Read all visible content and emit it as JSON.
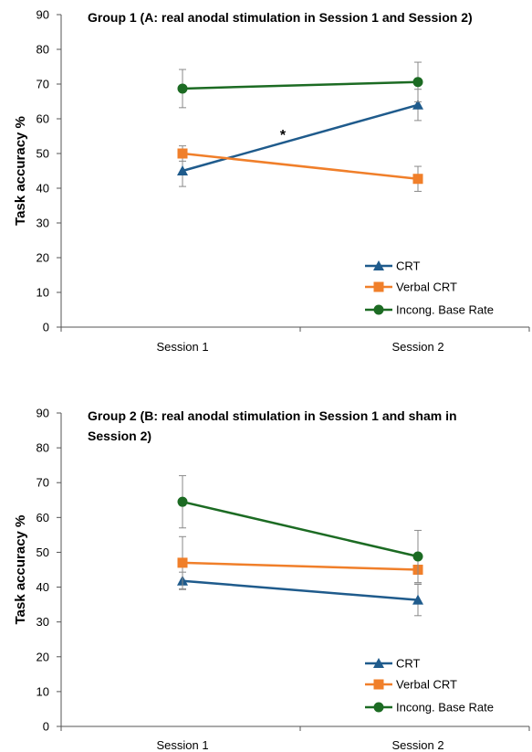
{
  "chart_data": [
    {
      "type": "line",
      "title_lines": [
        "Group 1 (A: real anodal stimulation in Session 1 and Session 2)"
      ],
      "ylabel": "Task accuracy %",
      "xlabel": "",
      "categories": [
        "Session 1",
        "Session 2"
      ],
      "ylim": [
        0,
        90
      ],
      "yticks": [
        "0",
        "10",
        "20",
        "30",
        "40",
        "50",
        "60",
        "70",
        "80",
        "90"
      ],
      "legend_position": "bottom-right",
      "grid": false,
      "annotation": "*",
      "series": [
        {
          "name": "CRT",
          "color": "#1f5b8c",
          "marker": "triangle",
          "values": [
            45,
            64
          ],
          "errors": [
            4.5,
            4.5
          ]
        },
        {
          "name": "Verbal CRT",
          "color": "#f07f2a",
          "marker": "square",
          "values": [
            50,
            42.7
          ],
          "errors": [
            2.2,
            3.6
          ]
        },
        {
          "name": "Incong. Base Rate",
          "color": "#1c6b23",
          "marker": "circle",
          "values": [
            68.7,
            70.6
          ],
          "errors": [
            5.5,
            5.7
          ]
        }
      ]
    },
    {
      "type": "line",
      "title_lines": [
        "Group 2 (B: real anodal stimulation in Session 1 and sham in",
        "Session 2)"
      ],
      "ylabel": "Task accuracy %",
      "xlabel": "",
      "categories": [
        "Session 1",
        "Session 2"
      ],
      "ylim": [
        0,
        90
      ],
      "yticks": [
        "0",
        "10",
        "20",
        "30",
        "40",
        "50",
        "60",
        "70",
        "80",
        "90"
      ],
      "legend_position": "bottom-right",
      "grid": false,
      "annotation": "",
      "series": [
        {
          "name": "CRT",
          "color": "#1f5b8c",
          "marker": "triangle",
          "values": [
            41.8,
            36.3
          ],
          "errors": [
            2.5,
            4.5
          ]
        },
        {
          "name": "Verbal CRT",
          "color": "#f07f2a",
          "marker": "square",
          "values": [
            47,
            45
          ],
          "errors": [
            7.5,
            3.8
          ]
        },
        {
          "name": "Incong. Base Rate",
          "color": "#1c6b23",
          "marker": "circle",
          "values": [
            64.5,
            48.8
          ],
          "errors": [
            7.5,
            7.5
          ]
        }
      ]
    }
  ]
}
